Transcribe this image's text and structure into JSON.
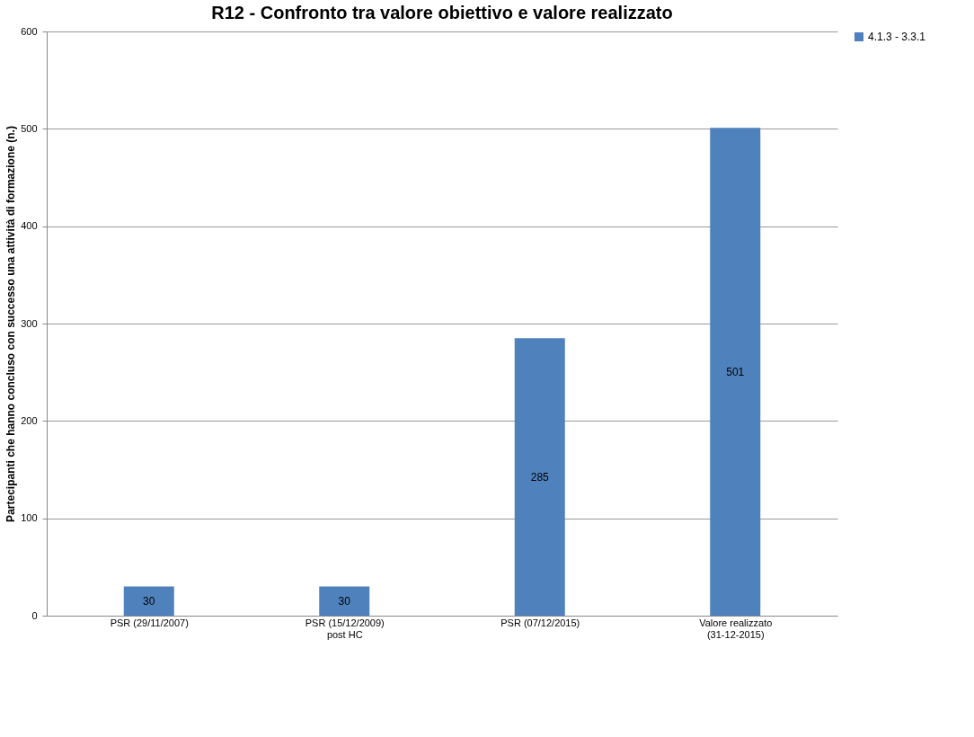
{
  "chart_data": {
    "type": "bar",
    "title": "R12 - Confronto tra valore obiettivo e valore realizzato",
    "ylabel": "Partecipanti che hanno concluso con successo una attività di formazione (n.)",
    "categories": [
      "PSR (29/11/2007)",
      "PSR (15/12/2009)\npost HC",
      "PSR (07/12/2015)",
      "Valore realizzato\n(31-12-2015)"
    ],
    "series": [
      {
        "name": "4.1.3  - 3.3.1",
        "color": "#4f81bd",
        "values": [
          30,
          30,
          285,
          501
        ]
      }
    ],
    "ylim": [
      0,
      600
    ],
    "yticks": [
      0,
      100,
      200,
      300,
      400,
      500,
      600
    ],
    "grid": "y",
    "legend": "right",
    "data_labels": true
  }
}
